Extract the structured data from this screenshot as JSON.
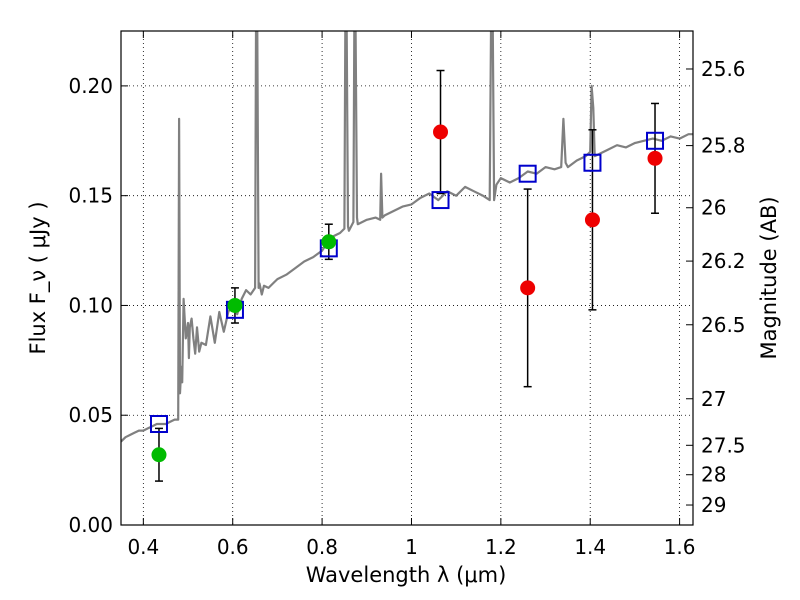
{
  "chart_data": {
    "type": "scatter",
    "xlabel": "Wavelength  λ (μm)",
    "ylabel": "Flux  F_ν  ( μJy )",
    "ylabel_right": "Magnitude (AB)",
    "xlim": [
      0.35,
      1.63
    ],
    "ylim": [
      0.0,
      0.225
    ],
    "x_ticks": [
      0.4,
      0.6,
      0.8,
      1.0,
      1.2,
      1.4,
      1.6
    ],
    "x_tick_labels": [
      "0.4",
      "0.6",
      "0.8",
      "1",
      "1.2",
      "1.4",
      "1.6"
    ],
    "y_ticks": [
      0.0,
      0.05,
      0.1,
      0.15,
      0.2
    ],
    "y_tick_labels": [
      "0.00",
      "0.05",
      "0.10",
      "0.15",
      "0.20"
    ],
    "right_ticks": [
      {
        "label": "25.6",
        "flux": 0.2077
      },
      {
        "label": "25.8",
        "flux": 0.1728
      },
      {
        "label": "26",
        "flux": 0.1445
      },
      {
        "label": "26.2",
        "flux": 0.1202
      },
      {
        "label": "26.5",
        "flux": 0.0912
      },
      {
        "label": "27",
        "flux": 0.0575
      },
      {
        "label": "27.5",
        "flux": 0.0363
      },
      {
        "label": "28",
        "flux": 0.0229
      },
      {
        "label": "29",
        "flux": 0.0091
      }
    ],
    "grid": true,
    "colors": {
      "spectrum": "#808080",
      "model": "#0000cc",
      "detected": "#00bb00",
      "observed": "#ee0000",
      "errorbar": "#000000"
    },
    "series": [
      {
        "name": "model spectrum",
        "type": "line",
        "x": [
          0.35,
          0.36,
          0.37,
          0.38,
          0.39,
          0.4,
          0.41,
          0.42,
          0.43,
          0.44,
          0.45,
          0.46,
          0.47,
          0.478,
          0.48,
          0.482,
          0.485,
          0.487,
          0.49,
          0.495,
          0.5,
          0.502,
          0.504,
          0.508,
          0.512,
          0.516,
          0.52,
          0.525,
          0.53,
          0.54,
          0.55,
          0.56,
          0.57,
          0.58,
          0.59,
          0.6,
          0.61,
          0.62,
          0.63,
          0.64,
          0.65,
          0.652,
          0.655,
          0.658,
          0.66,
          0.665,
          0.67,
          0.68,
          0.69,
          0.7,
          0.72,
          0.74,
          0.76,
          0.78,
          0.8,
          0.82,
          0.84,
          0.85,
          0.852,
          0.855,
          0.858,
          0.86,
          0.87,
          0.872,
          0.875,
          0.878,
          0.88,
          0.9,
          0.92,
          0.93,
          0.932,
          0.935,
          0.94,
          0.96,
          0.98,
          1.0,
          1.02,
          1.04,
          1.06,
          1.08,
          1.1,
          1.12,
          1.14,
          1.16,
          1.175,
          1.178,
          1.182,
          1.185,
          1.19,
          1.2,
          1.22,
          1.24,
          1.26,
          1.28,
          1.3,
          1.32,
          1.335,
          1.34,
          1.345,
          1.35,
          1.37,
          1.39,
          1.4,
          1.403,
          1.407,
          1.41,
          1.42,
          1.44,
          1.46,
          1.48,
          1.5,
          1.52,
          1.54,
          1.56,
          1.58,
          1.6,
          1.62,
          1.63
        ],
        "y": [
          0.038,
          0.04,
          0.041,
          0.042,
          0.043,
          0.043,
          0.044,
          0.045,
          0.046,
          0.046,
          0.046,
          0.047,
          0.048,
          0.048,
          0.185,
          0.06,
          0.072,
          0.065,
          0.103,
          0.085,
          0.092,
          0.076,
          0.09,
          0.094,
          0.085,
          0.078,
          0.09,
          0.079,
          0.083,
          0.082,
          0.095,
          0.083,
          0.097,
          0.088,
          0.097,
          0.101,
          0.096,
          0.103,
          0.107,
          0.105,
          0.108,
          0.225,
          0.225,
          0.108,
          0.11,
          0.105,
          0.109,
          0.108,
          0.11,
          0.112,
          0.114,
          0.117,
          0.12,
          0.122,
          0.125,
          0.131,
          0.133,
          0.135,
          0.225,
          0.225,
          0.136,
          0.134,
          0.138,
          0.225,
          0.225,
          0.14,
          0.137,
          0.139,
          0.14,
          0.139,
          0.16,
          0.14,
          0.141,
          0.143,
          0.145,
          0.146,
          0.149,
          0.151,
          0.148,
          0.152,
          0.15,
          0.154,
          0.152,
          0.15,
          0.148,
          0.225,
          0.225,
          0.148,
          0.155,
          0.158,
          0.156,
          0.158,
          0.161,
          0.16,
          0.163,
          0.162,
          0.163,
          0.185,
          0.165,
          0.163,
          0.166,
          0.168,
          0.17,
          0.2,
          0.19,
          0.168,
          0.169,
          0.171,
          0.173,
          0.172,
          0.174,
          0.175,
          0.176,
          0.175,
          0.177,
          0.176,
          0.178,
          0.178
        ]
      },
      {
        "name": "model photometry",
        "type": "scatter",
        "marker": "open-square",
        "x": [
          0.435,
          0.605,
          0.815,
          1.065,
          1.26,
          1.405,
          1.545
        ],
        "y": [
          0.046,
          0.098,
          0.126,
          0.148,
          0.16,
          0.165,
          0.175
        ]
      },
      {
        "name": "detections",
        "type": "scatter",
        "marker": "filled-circle",
        "x": [
          0.435,
          0.605,
          0.815
        ],
        "y": [
          0.032,
          0.1,
          0.129
        ],
        "err": [
          0.012,
          0.008,
          0.008
        ]
      },
      {
        "name": "observed",
        "type": "scatter",
        "marker": "filled-circle",
        "x": [
          1.065,
          1.26,
          1.405,
          1.545
        ],
        "y": [
          0.179,
          0.108,
          0.139,
          0.167
        ],
        "err": [
          0.028,
          0.045,
          0.041,
          0.025
        ]
      }
    ]
  }
}
